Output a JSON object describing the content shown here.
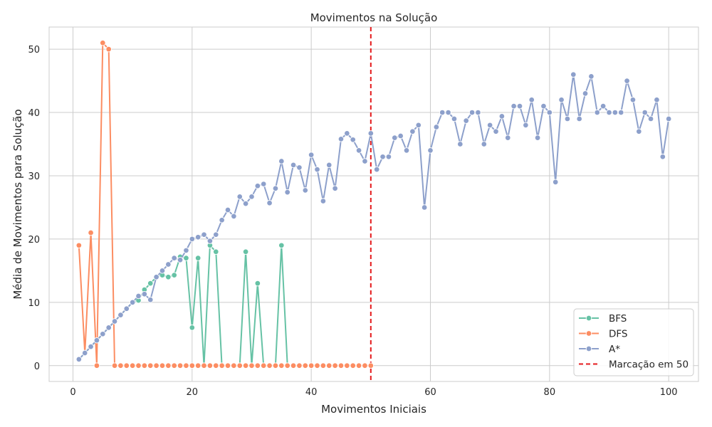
{
  "chart_data": {
    "type": "line",
    "title": "Movimentos na Solução",
    "xlabel": "Movimentos Iniciais",
    "ylabel": "Média de Movimentos para Solução",
    "xlim": [
      -4,
      105
    ],
    "ylim": [
      -2.5,
      53.5
    ],
    "xticks": [
      0,
      20,
      40,
      60,
      80,
      100
    ],
    "yticks": [
      0,
      10,
      20,
      30,
      40,
      50
    ],
    "grid": true,
    "legend_position": "lower-right",
    "series": [
      {
        "name": "BFS",
        "color": "#66c2a5",
        "marker": "circle",
        "x": [
          1,
          2,
          3,
          4,
          5,
          6,
          7,
          8,
          9,
          10,
          11,
          12,
          13,
          14,
          15,
          16,
          17,
          18,
          19,
          20,
          21,
          22,
          23,
          24,
          25,
          26,
          27,
          28,
          29,
          30,
          31,
          32,
          33,
          34,
          35,
          36
        ],
        "y": [
          1,
          2,
          3,
          4,
          5,
          6,
          7,
          8,
          9,
          10,
          10.3,
          12,
          13,
          14,
          14.3,
          14,
          14.3,
          17.2,
          17,
          6,
          17,
          0,
          19,
          18,
          0,
          0,
          0,
          0,
          18,
          0,
          13,
          0,
          0,
          0,
          19,
          0
        ]
      },
      {
        "name": "DFS",
        "color": "#fc8d62",
        "marker": "circle",
        "x": [
          1,
          2,
          3,
          4,
          5,
          6,
          7,
          8,
          9,
          10,
          11,
          12,
          13,
          14,
          15,
          16,
          17,
          18,
          19,
          20,
          21,
          22,
          23,
          24,
          25,
          26,
          27,
          28,
          29,
          30,
          31,
          32,
          33,
          34,
          35,
          36,
          37,
          38,
          39,
          40,
          41,
          42,
          43,
          44,
          45,
          46,
          47,
          48,
          49,
          50
        ],
        "y": [
          19,
          2,
          21,
          0,
          51,
          50,
          0,
          0,
          0,
          0,
          0,
          0,
          0,
          0,
          0,
          0,
          0,
          0,
          0,
          0,
          0,
          0,
          0,
          0,
          0,
          0,
          0,
          0,
          0,
          0,
          0,
          0,
          0,
          0,
          0,
          0,
          0,
          0,
          0,
          0,
          0,
          0,
          0,
          0,
          0,
          0,
          0,
          0,
          0,
          0
        ]
      },
      {
        "name": "A*",
        "color": "#8da0cb",
        "marker": "circle",
        "x": [
          1,
          2,
          3,
          4,
          5,
          6,
          7,
          8,
          9,
          10,
          11,
          12,
          13,
          14,
          15,
          16,
          17,
          18,
          19,
          20,
          21,
          22,
          23,
          24,
          25,
          26,
          27,
          28,
          29,
          30,
          31,
          32,
          33,
          34,
          35,
          36,
          37,
          38,
          39,
          40,
          41,
          42,
          43,
          44,
          45,
          46,
          47,
          48,
          49,
          50,
          51,
          52,
          53,
          54,
          55,
          56,
          57,
          58,
          59,
          60,
          61,
          62,
          63,
          64,
          65,
          66,
          67,
          68,
          69,
          70,
          71,
          72,
          73,
          74,
          75,
          76,
          77,
          78,
          79,
          80,
          81,
          82,
          83,
          84,
          85,
          86,
          87,
          88,
          89,
          90,
          91,
          92,
          93,
          94,
          95,
          96,
          97,
          98,
          99,
          100
        ],
        "y": [
          1,
          2,
          3,
          4,
          5,
          6,
          7,
          8,
          9,
          10,
          11,
          11.3,
          10.4,
          14,
          15,
          16,
          17,
          16.7,
          18.2,
          20,
          20.3,
          20.7,
          19.7,
          20.7,
          23,
          24.6,
          23.6,
          26.7,
          25.6,
          26.7,
          28.4,
          28.7,
          25.7,
          28,
          32.3,
          27.4,
          31.7,
          31.3,
          27.7,
          33.3,
          31,
          26,
          31.7,
          28,
          35.8,
          36.7,
          35.7,
          34,
          32.3,
          36.7,
          31,
          33,
          33,
          36,
          36.3,
          34,
          37,
          38,
          25,
          34,
          37.7,
          40,
          40,
          39,
          35,
          38.7,
          40,
          40,
          35,
          38,
          37,
          39.4,
          36,
          41,
          41,
          38,
          42,
          36,
          41,
          40,
          29,
          42,
          39,
          46,
          39,
          43,
          45.7,
          40,
          41,
          40,
          40,
          40,
          45,
          42,
          37,
          40,
          39,
          42,
          33,
          39
        ]
      }
    ],
    "reference_line": {
      "x": 50,
      "color": "#e41a1c",
      "style": "dashed",
      "label": "Marcação em 50"
    }
  }
}
